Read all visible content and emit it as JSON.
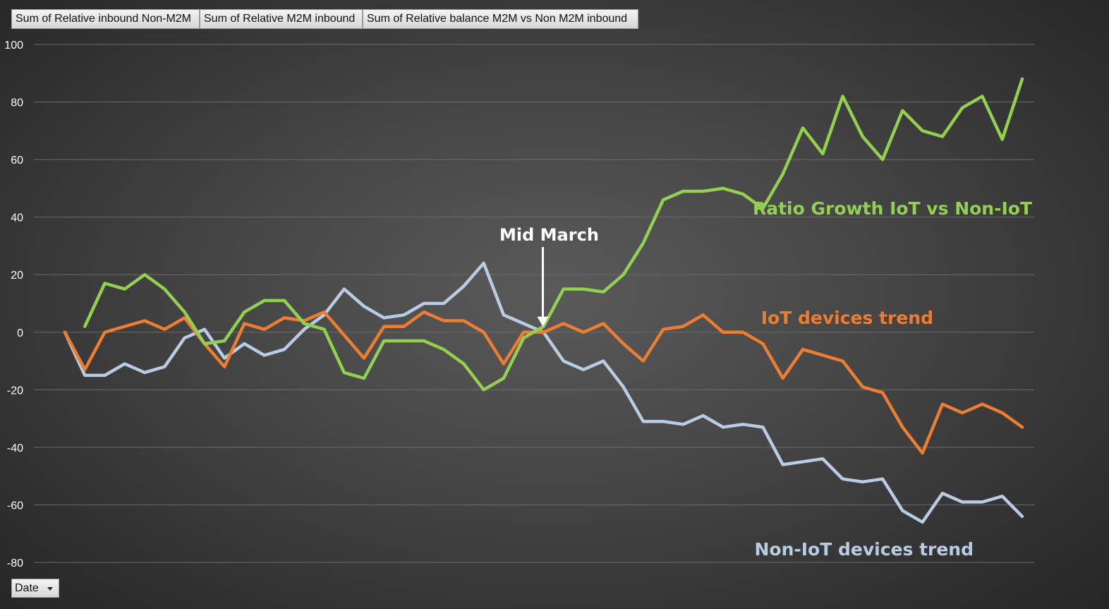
{
  "field_buttons": [
    "Sum of Relative inbound Non-M2M",
    "Sum of Relative M2M inbound",
    "Sum of Relative balance M2M vs Non M2M inbound"
  ],
  "date_filter": {
    "label": "Date",
    "icon": "dropdown-arrow-icon"
  },
  "colors": {
    "background": "#404040",
    "gridline": "#6b6b6b",
    "tick_text": "#ffffff",
    "annotation_text": "#ffffff"
  },
  "chart_data": {
    "type": "line",
    "ylim": [
      -80,
      100
    ],
    "yticks": [
      100,
      80,
      60,
      40,
      20,
      0,
      -20,
      -40,
      -60,
      -80
    ],
    "grid": true,
    "x_count": 50,
    "series": [
      {
        "name": "Non-IoT devices trend",
        "color": "#b8cce4",
        "start_index": 0,
        "values": [
          0,
          -15,
          -15,
          -11,
          -14,
          -12,
          -2,
          1,
          -9,
          -4,
          -8,
          -6,
          1,
          6,
          15,
          9,
          5,
          6,
          10,
          10,
          16,
          24,
          6,
          3,
          0,
          -10,
          -13,
          -10,
          -19,
          -31,
          -31,
          -32,
          -29,
          -33,
          -32,
          -33,
          -46,
          -45,
          -44,
          -51,
          -52,
          -51,
          -62,
          -66,
          -56,
          -59,
          -59,
          -57,
          -64
        ]
      },
      {
        "name": "IoT devices trend",
        "color": "#ed7d31",
        "start_index": 0,
        "values": [
          0,
          -13,
          0,
          2,
          4,
          1,
          5,
          -4,
          -12,
          3,
          1,
          5,
          4,
          7,
          -1,
          -9,
          2,
          2,
          7,
          4,
          4,
          0,
          -11,
          0,
          0,
          3,
          0,
          3,
          -4,
          -10,
          1,
          2,
          6,
          0,
          0,
          -4,
          -16,
          -6,
          -8,
          -10,
          -19,
          -21,
          -33,
          -42,
          -25,
          -28,
          -25,
          -28,
          -33
        ]
      },
      {
        "name": "Ratio Growth IoT vs Non-IoT",
        "color": "#92d050",
        "start_index": 1,
        "values": [
          2,
          17,
          15,
          20,
          15,
          7,
          -4,
          -3,
          7,
          11,
          11,
          3,
          1,
          -14,
          -16,
          -3,
          -3,
          -3,
          -6,
          -11,
          -20,
          -16,
          -2,
          2,
          15,
          15,
          14,
          20,
          31,
          46,
          49,
          49,
          50,
          48,
          43,
          55,
          71,
          62,
          82,
          68,
          60,
          77,
          70,
          68,
          78,
          82,
          67,
          88
        ]
      }
    ],
    "annotations": [
      {
        "text": "Mid March",
        "x_index": 24,
        "y": 0
      }
    ]
  }
}
